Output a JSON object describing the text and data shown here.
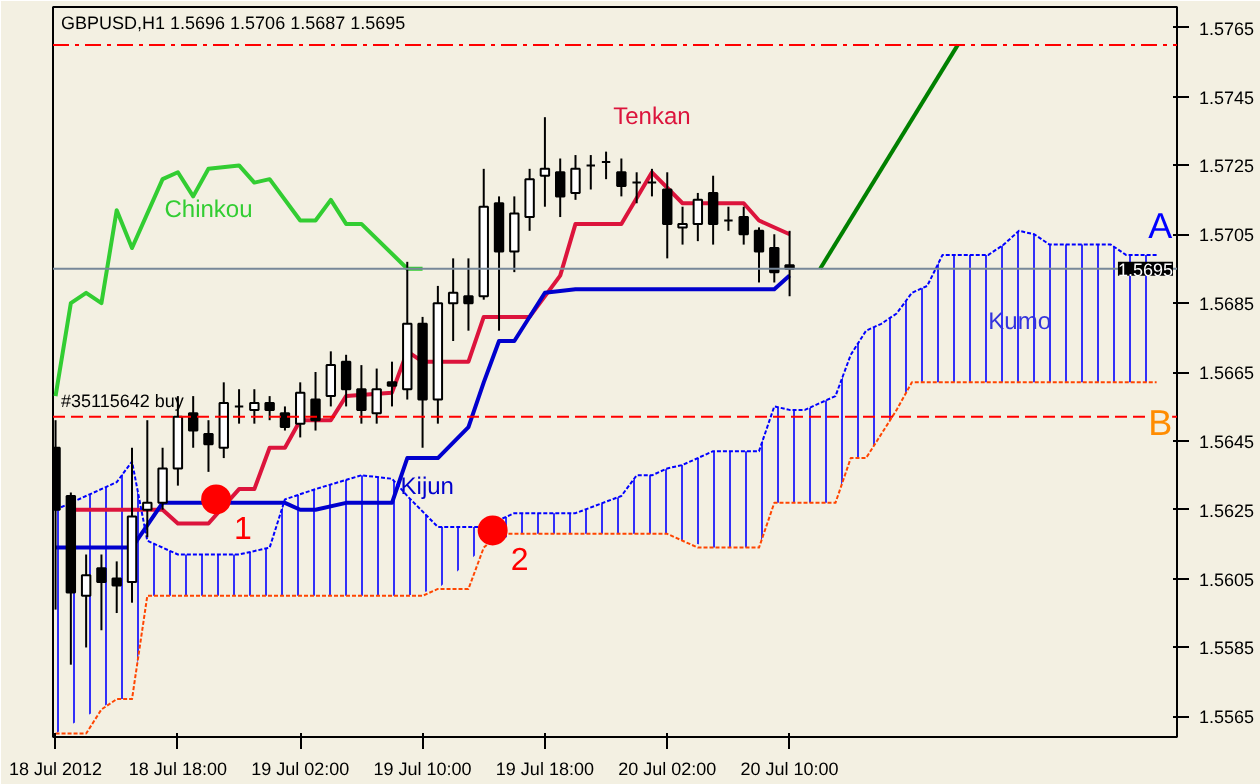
{
  "chart_data": {
    "type": "candlestick",
    "title": "GBPUSD,H1  1.5696 1.5706 1.5687 1.5695",
    "x": [
      "2012-07-18T10:00",
      "2012-07-18T11:00",
      "2012-07-18T12:00",
      "2012-07-18T13:00",
      "2012-07-18T14:00",
      "2012-07-18T15:00",
      "2012-07-18T16:00",
      "2012-07-18T17:00",
      "2012-07-18T18:00",
      "2012-07-18T19:00",
      "2012-07-18T20:00",
      "2012-07-18T21:00",
      "2012-07-18T22:00",
      "2012-07-18T23:00",
      "2012-07-19T00:00",
      "2012-07-19T01:00",
      "2012-07-19T02:00",
      "2012-07-19T03:00",
      "2012-07-19T04:00",
      "2012-07-19T05:00",
      "2012-07-19T06:00",
      "2012-07-19T07:00",
      "2012-07-19T08:00",
      "2012-07-19T09:00",
      "2012-07-19T10:00",
      "2012-07-19T11:00",
      "2012-07-19T12:00",
      "2012-07-19T13:00",
      "2012-07-19T14:00",
      "2012-07-19T15:00",
      "2012-07-19T16:00",
      "2012-07-19T17:00",
      "2012-07-19T18:00",
      "2012-07-19T19:00",
      "2012-07-19T20:00",
      "2012-07-19T21:00",
      "2012-07-19T22:00",
      "2012-07-19T23:00",
      "2012-07-20T00:00",
      "2012-07-20T01:00",
      "2012-07-20T02:00",
      "2012-07-20T03:00",
      "2012-07-20T04:00",
      "2012-07-20T05:00",
      "2012-07-20T06:00",
      "2012-07-20T07:00",
      "2012-07-20T08:00",
      "2012-07-20T09:00",
      "2012-07-20T10:00"
    ],
    "ohlc": [
      [
        1.5643,
        1.5651,
        1.5596,
        1.5625
      ],
      [
        1.5629,
        1.563,
        1.558,
        1.5601
      ],
      [
        1.56,
        1.5612,
        1.5585,
        1.5606
      ],
      [
        1.5608,
        1.5612,
        1.559,
        1.5604
      ],
      [
        1.5605,
        1.561,
        1.5595,
        1.5603
      ],
      [
        1.5604,
        1.5643,
        1.5598,
        1.5623
      ],
      [
        1.5625,
        1.5651,
        1.5617,
        1.5627
      ],
      [
        1.5627,
        1.5643,
        1.5625,
        1.5637
      ],
      [
        1.5637,
        1.5658,
        1.5632,
        1.5652
      ],
      [
        1.5653,
        1.5658,
        1.5643,
        1.5648
      ],
      [
        1.5647,
        1.5651,
        1.5636,
        1.5644
      ],
      [
        1.5643,
        1.5662,
        1.564,
        1.5656
      ],
      [
        1.5655,
        1.566,
        1.565,
        1.5655
      ],
      [
        1.5654,
        1.566,
        1.565,
        1.5656
      ],
      [
        1.5656,
        1.5658,
        1.5651,
        1.5654
      ],
      [
        1.5653,
        1.5655,
        1.5648,
        1.5649
      ],
      [
        1.565,
        1.5662,
        1.5646,
        1.5659
      ],
      [
        1.5657,
        1.5665,
        1.5648,
        1.5651
      ],
      [
        1.5658,
        1.5671,
        1.5655,
        1.5667
      ],
      [
        1.5668,
        1.567,
        1.5655,
        1.566
      ],
      [
        1.566,
        1.5667,
        1.565,
        1.5654
      ],
      [
        1.5653,
        1.5666,
        1.565,
        1.566
      ],
      [
        1.5662,
        1.5668,
        1.5655,
        1.5661
      ],
      [
        1.566,
        1.5697,
        1.5657,
        1.5679
      ],
      [
        1.5679,
        1.5681,
        1.5643,
        1.5657
      ],
      [
        1.5657,
        1.569,
        1.565,
        1.5685
      ],
      [
        1.5685,
        1.5698,
        1.5674,
        1.5688
      ],
      [
        1.5687,
        1.5698,
        1.5677,
        1.5685
      ],
      [
        1.5687,
        1.5724,
        1.5686,
        1.5713
      ],
      [
        1.5714,
        1.5716,
        1.5677,
        1.57
      ],
      [
        1.57,
        1.5716,
        1.5694,
        1.5711
      ],
      [
        1.571,
        1.5724,
        1.5706,
        1.5721
      ],
      [
        1.5722,
        1.5739,
        1.5713,
        1.5724
      ],
      [
        1.5723,
        1.5727,
        1.571,
        1.5716
      ],
      [
        1.5717,
        1.5728,
        1.5715,
        1.5724
      ],
      [
        1.5725,
        1.5728,
        1.5718,
        1.5725
      ],
      [
        1.5726,
        1.5729,
        1.5721,
        1.5726
      ],
      [
        1.5723,
        1.5727,
        1.5716,
        1.5719
      ],
      [
        1.572,
        1.5723,
        1.5714,
        1.572
      ],
      [
        1.572,
        1.5724,
        1.5716,
        1.572
      ],
      [
        1.5718,
        1.5723,
        1.5698,
        1.5708
      ],
      [
        1.5707,
        1.5713,
        1.5702,
        1.5708
      ],
      [
        1.5708,
        1.5717,
        1.5703,
        1.5715
      ],
      [
        1.5717,
        1.5722,
        1.5702,
        1.5708
      ],
      [
        1.5709,
        1.5713,
        1.5706,
        1.5709
      ],
      [
        1.571,
        1.5713,
        1.5702,
        1.5705
      ],
      [
        1.5706,
        1.5707,
        1.5691,
        1.57
      ],
      [
        1.5701,
        1.5705,
        1.5691,
        1.5694
      ],
      [
        1.5696,
        1.5706,
        1.5687,
        1.5695
      ]
    ],
    "series": [
      {
        "type": "line",
        "name": "Tenkan",
        "color": "#dc143c",
        "x": [
          "2012-07-18T11:00",
          "2012-07-18T17:00",
          "2012-07-18T18:00",
          "2012-07-18T20:00",
          "2012-07-18T22:00",
          "2012-07-18T23:00",
          "2012-07-19T00:00",
          "2012-07-19T01:00",
          "2012-07-19T02:00",
          "2012-07-19T04:00",
          "2012-07-19T05:00",
          "2012-07-19T08:00",
          "2012-07-19T09:00",
          "2012-07-19T10:00",
          "2012-07-19T13:00",
          "2012-07-19T14:00",
          "2012-07-19T17:00",
          "2012-07-19T19:00",
          "2012-07-19T20:00",
          "2012-07-19T23:00",
          "2012-07-20T01:00",
          "2012-07-20T03:00",
          "2012-07-20T07:00",
          "2012-07-20T08:00",
          "2012-07-20T10:00"
        ],
        "values": [
          1.5625,
          1.5625,
          1.5621,
          1.5621,
          1.5631,
          1.5631,
          1.5643,
          1.5643,
          1.5651,
          1.5651,
          1.5658,
          1.5659,
          1.5671,
          1.5668,
          1.5668,
          1.5681,
          1.5681,
          1.5693,
          1.5708,
          1.5708,
          1.5723,
          1.5714,
          1.5714,
          1.5709,
          1.5705
        ]
      },
      {
        "type": "line",
        "name": "Kijun",
        "color": "#0000cd",
        "x": [
          "2012-07-18T10:00",
          "2012-07-18T15:00",
          "2012-07-18T17:00",
          "2012-07-19T01:00",
          "2012-07-19T02:00",
          "2012-07-19T03:00",
          "2012-07-19T05:00",
          "2012-07-19T08:00",
          "2012-07-19T09:00",
          "2012-07-19T11:00",
          "2012-07-19T13:00",
          "2012-07-19T14:00",
          "2012-07-19T15:00",
          "2012-07-19T16:00",
          "2012-07-19T18:00",
          "2012-07-19T20:00",
          "2012-07-20T09:00",
          "2012-07-20T10:00"
        ],
        "values": [
          1.5614,
          1.5614,
          1.5627,
          1.5627,
          1.5625,
          1.5625,
          1.5627,
          1.5627,
          1.564,
          1.564,
          1.5649,
          1.5662,
          1.5674,
          1.5674,
          1.5688,
          1.5689,
          1.5689,
          1.5693
        ]
      },
      {
        "type": "line",
        "name": "Chinkou",
        "color": "#32cd32",
        "x": [
          "2012-07-18T10:00",
          "2012-07-18T11:00",
          "2012-07-18T12:00",
          "2012-07-18T13:00",
          "2012-07-18T14:00",
          "2012-07-18T15:00",
          "2012-07-18T17:00",
          "2012-07-18T18:00",
          "2012-07-18T19:00",
          "2012-07-18T20:00",
          "2012-07-18T22:00",
          "2012-07-18T23:00",
          "2012-07-19T00:00",
          "2012-07-19T02:00",
          "2012-07-19T03:00",
          "2012-07-19T04:00",
          "2012-07-19T05:00",
          "2012-07-19T06:00",
          "2012-07-19T09:00",
          "2012-07-19T10:00"
        ],
        "values": [
          1.5658,
          1.5685,
          1.5688,
          1.5685,
          1.5712,
          1.5701,
          1.5721,
          1.5723,
          1.5716,
          1.5724,
          1.5725,
          1.572,
          1.5721,
          1.5709,
          1.5709,
          1.5715,
          1.5708,
          1.5708,
          1.5695,
          1.5695
        ]
      },
      {
        "type": "line",
        "color": "#0000ff",
        "line_style": "dotted",
        "lower": [
          1.556,
          1.557,
          1.557,
          1.56,
          1.56,
          1.56,
          1.56,
          1.56,
          1.56,
          1.56,
          1.56,
          1.56,
          1.5602,
          1.5614,
          1.5618,
          1.5618,
          1.5618,
          1.5618,
          1.5618,
          1.5618,
          1.5616,
          1.5614,
          1.5614,
          1.5627,
          1.5627,
          1.5627,
          1.5627,
          1.564,
          1.564,
          1.5647,
          1.5654,
          1.5662,
          1.5662,
          1.5662,
          1.5662,
          1.5662,
          1.5662,
          1.5662,
          1.5662,
          1.5662,
          1.5662,
          1.5662
        ],
        "upper": [
          1.5625,
          1.5633,
          1.5639,
          1.5616,
          1.5612,
          1.5612,
          1.5614,
          1.5628,
          1.5631,
          1.5635,
          1.5634,
          1.5629,
          1.562,
          1.562,
          1.5624,
          1.5624,
          1.5629,
          1.5635,
          1.5635,
          1.5637,
          1.5638,
          1.5642,
          1.5642,
          1.5655,
          1.5654,
          1.5654,
          1.5658,
          1.567,
          1.5677,
          1.5679,
          1.5682,
          1.5688,
          1.569,
          1.5699,
          1.5699,
          1.5702,
          1.5706,
          1.5705,
          1.5702,
          1.5702,
          1.5699,
          1.5699
        ],
        "x": [
          "2012-07-18T10:00",
          "2012-07-18T14:00",
          "2012-07-18T15:00",
          "2012-07-18T16:00",
          "2012-07-18T18:00",
          "2012-07-18T22:00",
          "2012-07-19T00:00",
          "2012-07-19T01:00",
          "2012-07-19T03:00",
          "2012-07-19T06:00",
          "2012-07-19T08:00",
          "2012-07-19T09:00",
          "2012-07-19T11:00",
          "2012-07-19T14:00",
          "2012-07-19T16:00",
          "2012-07-19T20:00",
          "2012-07-19T23:00",
          "2012-07-20T00:00",
          "2012-07-20T01:00",
          "2012-07-20T02:00",
          "2012-07-20T03:00",
          "2012-07-20T05:00",
          "2012-07-20T08:00",
          "2012-07-20T09:00",
          "2012-07-20T10:00",
          "2012-07-20T11:00",
          "2012-07-20T13:00",
          "2012-07-20T14:00",
          "2012-07-20T15:00",
          "2012-07-20T16:00",
          "2012-07-20T17:00",
          "2012-07-20T18:00",
          "2012-07-20T19:00",
          "2012-07-20T20:00",
          "2012-07-20T23:00",
          "2012-07-21T00:00",
          "2012-07-21T01:00",
          "2012-07-21T02:00",
          "2012-07-21T03:00",
          "2012-07-21T07:00",
          "2012-07-21T08:00",
          "2012-07-21T10:00"
        ],
        "values": [
          1.5625,
          1.5633,
          1.5639,
          1.5616,
          1.5612,
          1.5612,
          1.5614,
          1.5628,
          1.5631,
          1.5635,
          1.5634,
          1.5629,
          1.562,
          1.562,
          1.5624,
          1.5624,
          1.5629,
          1.5635,
          1.5635,
          1.5637,
          1.5638,
          1.5642,
          1.5642,
          1.5655,
          1.5654,
          1.5654,
          1.5658,
          1.567,
          1.5677,
          1.5679,
          1.5682,
          1.5688,
          1.569,
          1.5699,
          1.5699,
          1.5702,
          1.5706,
          1.5705,
          1.5702,
          1.5702,
          1.5699,
          1.5699
        ]
      },
      {
        "type": "line",
        "color": "#ff4500",
        "line_style": "dotted",
        "x": [
          "2012-07-18T10:00",
          "2012-07-18T12:00",
          "2012-07-18T13:00",
          "2012-07-18T14:00",
          "2012-07-18T15:00",
          "2012-07-18T16:00",
          "2012-07-19T10:00",
          "2012-07-19T11:00",
          "2012-07-19T13:00",
          "2012-07-19T14:00",
          "2012-07-19T15:00",
          "2012-07-20T02:00",
          "2012-07-20T04:00",
          "2012-07-20T08:00",
          "2012-07-20T09:00",
          "2012-07-20T13:00",
          "2012-07-20T14:00",
          "2012-07-20T15:00",
          "2012-07-20T17:00",
          "2012-07-20T18:00",
          "2012-07-21T10:00"
        ],
        "values": [
          1.556,
          1.556,
          1.5567,
          1.557,
          1.557,
          1.56,
          1.56,
          1.5602,
          1.5602,
          1.5614,
          1.5618,
          1.5618,
          1.5614,
          1.5614,
          1.5627,
          1.5627,
          1.564,
          1.564,
          1.5654,
          1.5662,
          1.5662
        ]
      },
      {
        "type": "line",
        "color": "#008000",
        "x": [
          "2012-07-20T12:00",
          "2012-07-20T21:00"
        ],
        "values": [
          1.5695,
          1.576
        ]
      },
      {
        "type": "scatter",
        "color": "#ff0000",
        "marker": "circle",
        "x": [
          "2012-07-18T20:30",
          "2012-07-19T14:35"
        ],
        "values": [
          1.5628,
          1.5619
        ]
      }
    ],
    "annotations": [
      {
        "text": "1",
        "x": "2012-07-18T20:30",
        "y": 1.5628
      },
      {
        "text": "2",
        "x": "2012-07-19T14:35",
        "y": 1.5619
      },
      "Kumo",
      "A",
      "B"
    ],
    "ref_lines": [
      {
        "axis": "y",
        "value": 1.576,
        "color": "#ff0000",
        "line_style": "dashdot"
      },
      {
        "axis": "y",
        "value": 1.5652,
        "label": "#35115642 buy",
        "color": "#ff0000",
        "line_style": "dashed"
      },
      {
        "axis": "y",
        "value": 1.5695,
        "label": "1.5695",
        "color": "#778899",
        "line_style": "solid"
      }
    ],
    "xlim": [
      "2012-07-18T09:50",
      "2012-07-21T11:20"
    ],
    "xticks": [
      {
        "value": "2012-07-18T10:00",
        "label": "18 Jul 2012"
      },
      {
        "value": "2012-07-18T18:00",
        "label": "18 Jul 18:00"
      },
      {
        "value": "2012-07-19T02:00",
        "label": "19 Jul 02:00"
      },
      {
        "value": "2012-07-19T10:00",
        "label": "19 Jul 10:00"
      },
      {
        "value": "2012-07-19T18:00",
        "label": "19 Jul 18:00"
      },
      {
        "value": "2012-07-20T02:00",
        "label": "20 Jul 02:00"
      },
      {
        "value": "2012-07-20T10:00",
        "label": "20 Jul 10:00"
      }
    ],
    "ylim": [
      1.5559,
      1.5771
    ],
    "yticks": [
      1.5565,
      1.5585,
      1.5605,
      1.5625,
      1.5645,
      1.5665,
      1.5685,
      1.5705,
      1.5725,
      1.5745,
      1.5765
    ],
    "grid": false
  }
}
